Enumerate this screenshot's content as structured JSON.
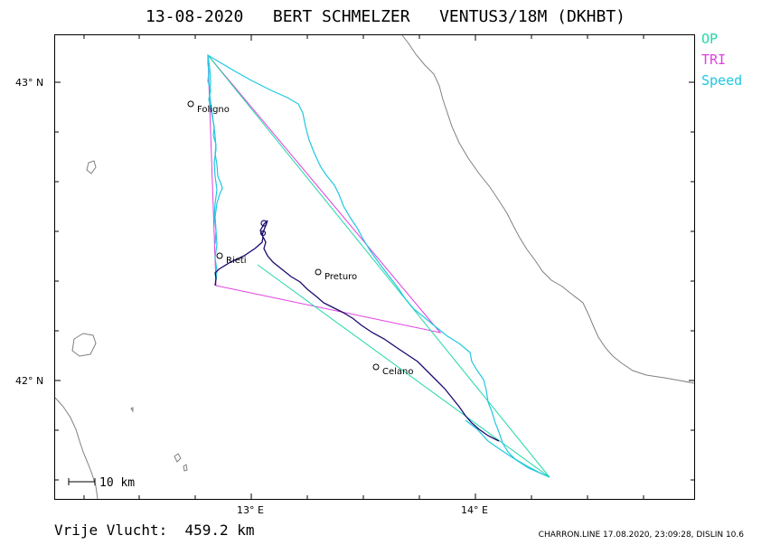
{
  "title": "13-08-2020   BERT SCHMELZER   VENTUS3/18M (DKHBT)",
  "legend": [
    {
      "label": "OP",
      "color": "#20d8a8"
    },
    {
      "label": "TRI",
      "color": "#e040e0"
    },
    {
      "label": "Speed",
      "color": "#20c8e0"
    }
  ],
  "axes": {
    "lat_labels": [
      "43° N",
      "42° N"
    ],
    "lon_labels": [
      "13° E",
      "14° E"
    ]
  },
  "scale_bar": "10 km",
  "cities": [
    "Foligno",
    "Rieti",
    "Preturo",
    "Celano"
  ],
  "distance_text": "Vrije Vlucht:  459.2 km",
  "footer_info": "CHARRON.LINE 17.08.2020, 23:09:28, DISLIN 10.6",
  "colors": {
    "coast": "#808080",
    "track_speed": "#20c8e0",
    "track_climb": "#1a0a6e",
    "op": "#20d8a8",
    "tri": "#e040e0"
  }
}
